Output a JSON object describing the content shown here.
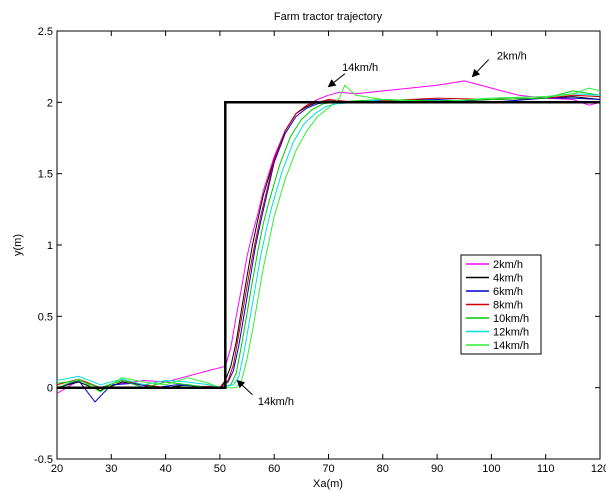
{
  "chart_data": {
    "type": "line",
    "title": "Farm tractor trajectory",
    "xlabel": "Xa(m)",
    "ylabel": "y(m)",
    "xlim": [
      20,
      120
    ],
    "ylim": [
      -0.5,
      2.5
    ],
    "xticks": [
      20,
      30,
      40,
      50,
      60,
      70,
      80,
      90,
      100,
      110,
      120
    ],
    "yticks": [
      -0.5,
      0,
      0.5,
      1,
      1.5,
      2,
      2.5
    ],
    "grid": false,
    "legend_position": "right-middle",
    "reference": {
      "name": "",
      "color": "#000000",
      "x": [
        20,
        51,
        51,
        120
      ],
      "y": [
        0,
        0,
        2,
        2
      ]
    },
    "series": [
      {
        "name": "2km/h",
        "color": "#ff00ff",
        "x": [
          20,
          24,
          28,
          32,
          36,
          40,
          44,
          48,
          50,
          51,
          52,
          53,
          54,
          55,
          56,
          57,
          58,
          60,
          62,
          64,
          66,
          68,
          70,
          72,
          75,
          80,
          85,
          90,
          95,
          100,
          105,
          110,
          115,
          118,
          120
        ],
        "y": [
          -0.04,
          0.05,
          0.0,
          0.03,
          0.05,
          0.04,
          0.08,
          0.12,
          0.14,
          0.15,
          0.28,
          0.5,
          0.7,
          0.92,
          1.08,
          1.22,
          1.38,
          1.62,
          1.8,
          1.92,
          1.98,
          2.02,
          2.05,
          2.07,
          2.06,
          2.08,
          2.1,
          2.12,
          2.15,
          2.1,
          2.05,
          2.03,
          2.02,
          1.98,
          2.0
        ]
      },
      {
        "name": "4km/h",
        "color": "#000000",
        "x": [
          20,
          24,
          28,
          32,
          36,
          40,
          44,
          48,
          50,
          51,
          52,
          53,
          54,
          55,
          56,
          57,
          58,
          60,
          62,
          64,
          66,
          68,
          70,
          75,
          80,
          90,
          100,
          110,
          115,
          120
        ],
        "y": [
          0.0,
          0.04,
          -0.02,
          0.04,
          0.02,
          0.0,
          0.02,
          0.0,
          0.0,
          0.05,
          0.15,
          0.32,
          0.55,
          0.78,
          1.0,
          1.18,
          1.35,
          1.6,
          1.8,
          1.92,
          1.97,
          2.0,
          2.01,
          2.0,
          2.02,
          2.0,
          2.02,
          2.03,
          2.04,
          2.02
        ]
      },
      {
        "name": "6km/h",
        "color": "#0000cc",
        "x": [
          20,
          24,
          27,
          30,
          34,
          38,
          42,
          46,
          50,
          51.5,
          52.5,
          53.5,
          54.5,
          55.5,
          56.5,
          57.5,
          58.5,
          60,
          62,
          64,
          66,
          68,
          70,
          75,
          80,
          90,
          100,
          110,
          115,
          120
        ],
        "y": [
          0.0,
          0.05,
          -0.1,
          0.02,
          0.03,
          0.0,
          0.02,
          0.01,
          0.0,
          0.04,
          0.12,
          0.3,
          0.52,
          0.75,
          0.98,
          1.16,
          1.33,
          1.58,
          1.78,
          1.9,
          1.96,
          1.99,
          2.0,
          2.0,
          2.01,
          2.02,
          2.0,
          2.03,
          2.03,
          2.02
        ]
      },
      {
        "name": "8km/h",
        "color": "#cc0000",
        "x": [
          20,
          24,
          28,
          32,
          36,
          40,
          44,
          48,
          50,
          51.5,
          52.5,
          53.5,
          54.5,
          55.5,
          56.5,
          57.5,
          58.5,
          60,
          62,
          64,
          66,
          68,
          70,
          75,
          80,
          90,
          100,
          110,
          115,
          120
        ],
        "y": [
          0.02,
          0.06,
          0.0,
          0.05,
          0.02,
          0.0,
          0.0,
          0.01,
          0.0,
          0.05,
          0.16,
          0.38,
          0.6,
          0.82,
          1.02,
          1.2,
          1.36,
          1.6,
          1.8,
          1.92,
          1.98,
          2.0,
          2.02,
          2.0,
          2.01,
          2.03,
          2.02,
          2.03,
          2.05,
          2.04
        ]
      },
      {
        "name": "10km/h",
        "color": "#00cc00",
        "x": [
          20,
          24,
          28,
          32,
          36,
          40,
          44,
          48,
          50,
          52,
          53,
          54,
          55,
          56,
          57,
          58,
          59,
          61,
          63,
          65,
          67,
          69,
          71,
          75,
          80,
          90,
          100,
          110,
          115,
          120
        ],
        "y": [
          0.03,
          0.05,
          0.0,
          0.05,
          0.0,
          0.04,
          0.02,
          0.0,
          0.0,
          0.02,
          0.1,
          0.3,
          0.52,
          0.75,
          0.96,
          1.15,
          1.3,
          1.56,
          1.76,
          1.88,
          1.95,
          1.99,
          2.0,
          2.01,
          2.02,
          2.01,
          2.02,
          2.03,
          2.08,
          2.05
        ]
      },
      {
        "name": "12km/h",
        "color": "#00e0e0",
        "x": [
          20,
          24,
          28,
          32,
          36,
          40,
          44,
          48,
          50,
          52.5,
          53.5,
          54.5,
          55.5,
          56.5,
          57.5,
          58.5,
          59.5,
          61.5,
          63.5,
          65.5,
          67.5,
          69.5,
          71.5,
          75,
          80,
          90,
          100,
          110,
          115,
          120
        ],
        "y": [
          0.05,
          0.08,
          0.02,
          0.06,
          0.02,
          0.05,
          0.04,
          0.02,
          0.0,
          0.02,
          0.08,
          0.26,
          0.48,
          0.7,
          0.92,
          1.1,
          1.26,
          1.52,
          1.72,
          1.85,
          1.92,
          1.97,
          1.99,
          2.0,
          2.02,
          2.0,
          2.03,
          2.04,
          2.06,
          2.05
        ]
      },
      {
        "name": "14km/h",
        "color": "#33ee33",
        "x": [
          20,
          24,
          28,
          32,
          36,
          40,
          44,
          48,
          50,
          53,
          54,
          55,
          56,
          57,
          58,
          59,
          60,
          62,
          64,
          66,
          68,
          70,
          72,
          73,
          75,
          80,
          90,
          100,
          110,
          115,
          118,
          120
        ],
        "y": [
          0.0,
          0.06,
          -0.03,
          0.07,
          0.04,
          0.02,
          0.07,
          0.03,
          0.0,
          0.0,
          0.05,
          0.2,
          0.4,
          0.62,
          0.84,
          1.02,
          1.2,
          1.46,
          1.66,
          1.8,
          1.9,
          1.96,
          2.03,
          2.12,
          2.05,
          2.02,
          2.0,
          2.03,
          2.04,
          2.06,
          2.1,
          2.08
        ]
      }
    ],
    "annotations": [
      {
        "text": "14km/h",
        "text_x": 72.5,
        "text_y": 2.22,
        "arrow_from_x": 73,
        "arrow_from_y": 2.2,
        "arrow_to_x": 70,
        "arrow_to_y": 2.11
      },
      {
        "text": "2km/h",
        "text_x": 101,
        "text_y": 2.3,
        "arrow_from_x": 99.5,
        "arrow_from_y": 2.3,
        "arrow_to_x": 96.5,
        "arrow_to_y": 2.18
      },
      {
        "text": "14km/h",
        "text_x": 57,
        "text_y": -0.12,
        "arrow_from_x": 56,
        "arrow_from_y": -0.05,
        "arrow_to_x": 53.2,
        "arrow_to_y": 0.05
      }
    ]
  }
}
